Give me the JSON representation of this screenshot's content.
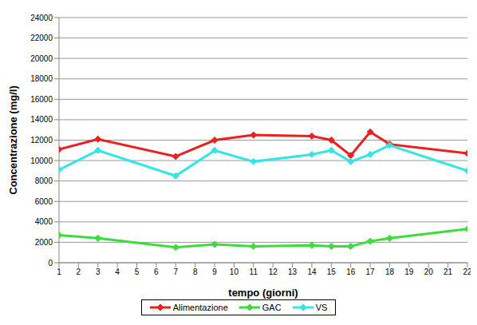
{
  "chart_data": {
    "type": "line",
    "x_label": "tempo (giorni)",
    "y_label": "Concentrazione (mg/l)",
    "x": [
      1,
      3,
      7,
      9,
      11,
      14,
      15,
      16,
      17,
      18,
      22
    ],
    "xlim": [
      1,
      22
    ],
    "xticks": [
      1,
      2,
      3,
      4,
      5,
      6,
      7,
      8,
      9,
      10,
      11,
      12,
      13,
      14,
      15,
      16,
      17,
      18,
      19,
      20,
      21,
      22
    ],
    "ylim": [
      0,
      24000
    ],
    "yticks": [
      0,
      2000,
      4000,
      6000,
      8000,
      10000,
      12000,
      14000,
      16000,
      18000,
      20000,
      22000,
      24000
    ],
    "grid": true,
    "legend": "bottom",
    "marker": "diamond",
    "series": [
      {
        "name": "Alimentazione",
        "color": "#e8221e",
        "values": [
          11100,
          12100,
          10400,
          12000,
          12500,
          12400,
          12000,
          10500,
          12800,
          11600,
          10700
        ]
      },
      {
        "name": "GAC",
        "color": "#3ddc3d",
        "values": [
          2700,
          2400,
          1500,
          1800,
          1600,
          1700,
          1600,
          1600,
          2100,
          2400,
          3300
        ]
      },
      {
        "name": "VS",
        "color": "#33e6e6",
        "values": [
          9100,
          11000,
          8500,
          11000,
          9900,
          10600,
          11000,
          9900,
          10600,
          11500,
          9000
        ]
      }
    ]
  }
}
